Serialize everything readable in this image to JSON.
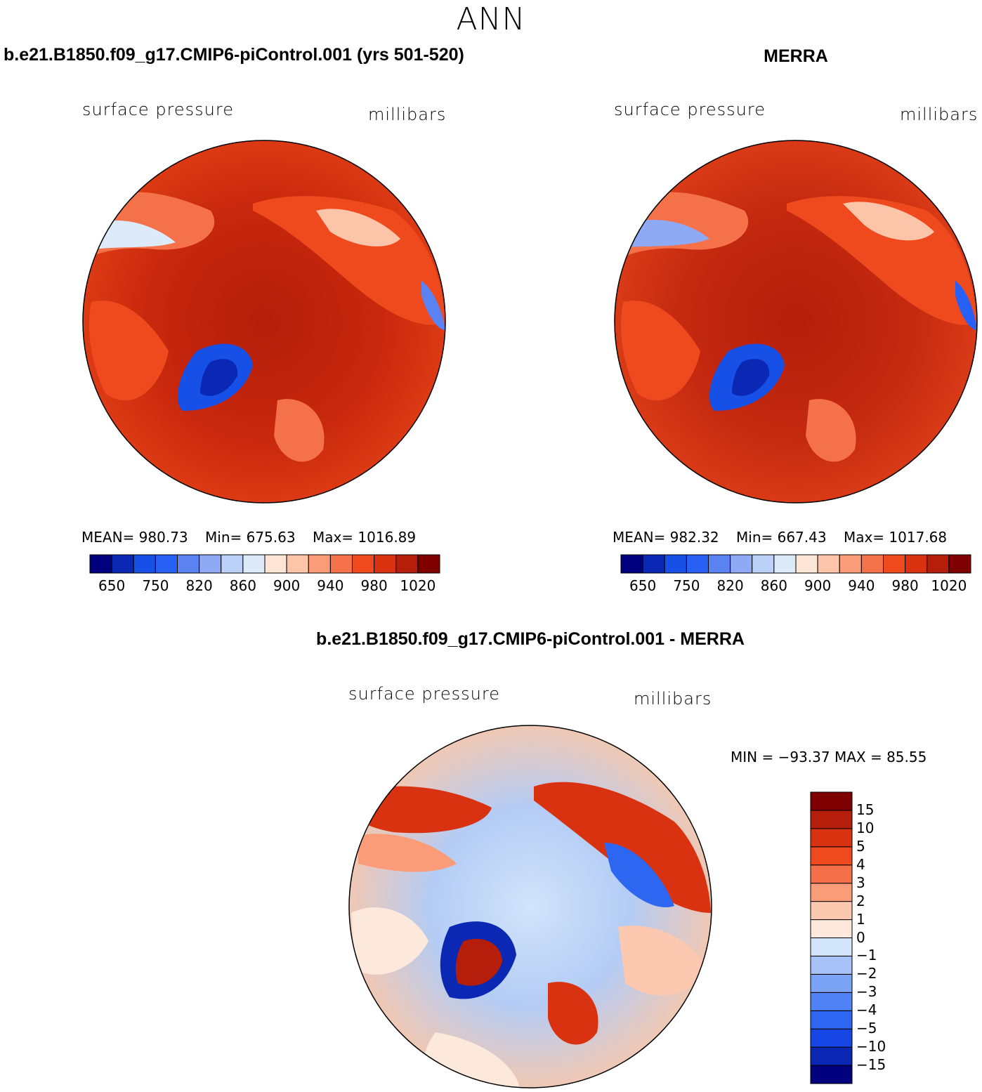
{
  "figure": {
    "title": "ANN"
  },
  "panels": {
    "test": {
      "title": "b.e21.B1850.f09_g17.CMIP6-piControl.001 (yrs 501-520)",
      "variable": "surface pressure",
      "units": "millibars",
      "mean_label": "MEAN=",
      "mean": "980.73",
      "min_label": "Min=",
      "min": "675.63",
      "max_label": "Max=",
      "max": "1016.89"
    },
    "obs": {
      "title": "MERRA",
      "variable": "surface pressure",
      "units": "millibars",
      "mean_label": "MEAN=",
      "mean": "982.32",
      "min_label": "Min=",
      "min": "667.43",
      "max_label": "Max=",
      "max": "1017.68"
    },
    "diff": {
      "title": "b.e21.B1850.f09_g17.CMIP6-piControl.001 - MERRA",
      "variable": "surface pressure",
      "units": "millibars",
      "minmax_text": "MIN = −93.37  MAX =   85.55"
    }
  },
  "colorbars": {
    "abs_colors": [
      "#00007f",
      "#0a28b4",
      "#1650e6",
      "#285ff5",
      "#5a82f0",
      "#8eaaf5",
      "#bcd1f7",
      "#dceafa",
      "#fde6d6",
      "#fcc4a8",
      "#fa9c78",
      "#f5714a",
      "#ee4a1e",
      "#d93210",
      "#b41e0a",
      "#7f0000"
    ],
    "abs_labels": [
      "650",
      "750",
      "820",
      "860",
      "900",
      "940",
      "980",
      "1020"
    ],
    "diff_colors": [
      "#00007f",
      "#0a28b4",
      "#1646e6",
      "#2d66f0",
      "#5082f5",
      "#7aa2f5",
      "#a6c2f7",
      "#d2e4fa",
      "#fde8dc",
      "#fcc8b0",
      "#fa9c78",
      "#f57048",
      "#ee4a1e",
      "#d93210",
      "#b41e0a",
      "#7f0000"
    ],
    "diff_labels": [
      "15",
      "10",
      "5",
      "4",
      "3",
      "2",
      "1",
      "0",
      "−1",
      "−2",
      "−3",
      "−4",
      "−5",
      "−10",
      "−15"
    ]
  }
}
